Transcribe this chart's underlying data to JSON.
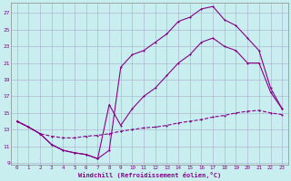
{
  "xlabel": "Windchill (Refroidissement éolien,°C)",
  "bg_color": "#c8eef0",
  "line_color": "#880088",
  "grid_color": "#aaaacc",
  "xlim_min": -0.5,
  "xlim_max": 23.5,
  "ylim_min": 8.8,
  "ylim_max": 28.2,
  "xticks": [
    0,
    1,
    2,
    3,
    4,
    5,
    6,
    7,
    8,
    9,
    10,
    11,
    12,
    13,
    14,
    15,
    16,
    17,
    18,
    19,
    20,
    21,
    22,
    23
  ],
  "yticks": [
    9,
    11,
    13,
    15,
    17,
    19,
    21,
    23,
    25,
    27
  ],
  "c1_x": [
    0,
    1,
    2,
    3,
    4,
    5,
    6,
    7,
    8,
    9,
    10,
    11,
    12,
    13,
    14,
    15,
    16,
    17,
    18,
    19,
    20,
    21,
    22,
    23
  ],
  "c1_y": [
    14,
    13.3,
    12.5,
    12.2,
    12.0,
    12.0,
    12.2,
    12.3,
    12.5,
    12.8,
    13.0,
    13.2,
    13.3,
    13.5,
    13.8,
    14.0,
    14.2,
    14.5,
    14.7,
    15.0,
    15.2,
    15.3,
    15.0,
    14.8
  ],
  "c2_x": [
    0,
    1,
    2,
    3,
    4,
    5,
    6,
    7,
    8,
    9,
    10,
    11,
    12,
    13,
    14,
    15,
    16,
    17,
    18,
    19,
    20,
    21,
    22,
    23
  ],
  "c2_y": [
    14,
    13.3,
    12.5,
    11.2,
    10.5,
    10.2,
    10.0,
    9.5,
    10.5,
    20.5,
    22.0,
    22.5,
    23.5,
    24.5,
    26.0,
    26.5,
    27.5,
    27.8,
    26.2,
    25.5,
    24.0,
    22.5,
    18.0,
    15.5
  ],
  "c3_x": [
    0,
    1,
    2,
    3,
    4,
    5,
    6,
    7,
    8,
    9,
    10,
    11,
    12,
    13,
    14,
    15,
    16,
    17,
    18,
    19,
    20,
    21,
    22,
    23
  ],
  "c3_y": [
    14,
    13.3,
    12.5,
    11.2,
    10.5,
    10.2,
    10.0,
    9.5,
    16.0,
    13.5,
    15.5,
    17.0,
    18.0,
    19.5,
    21.0,
    22.0,
    23.5,
    24.0,
    23.0,
    22.5,
    21.0,
    21.0,
    17.5,
    15.5
  ]
}
